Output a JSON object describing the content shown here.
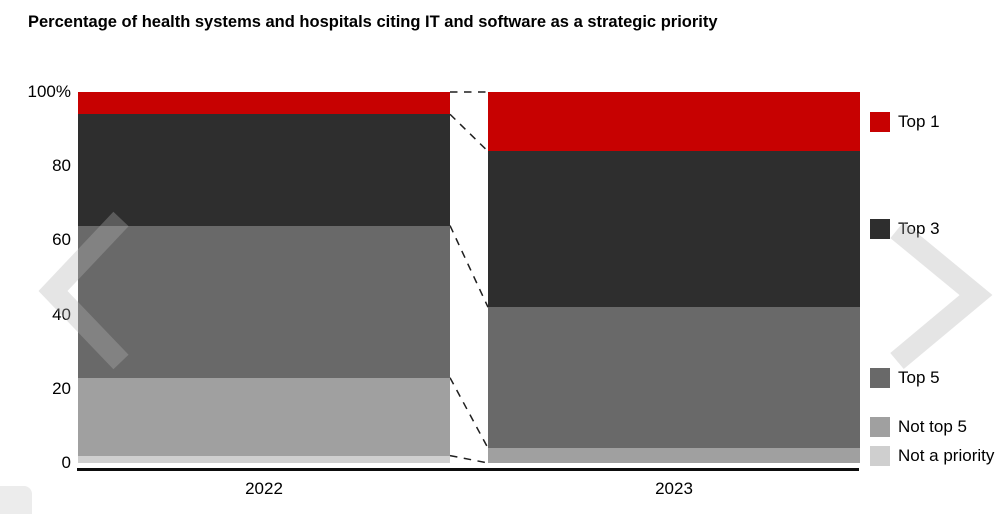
{
  "title": "Percentage of health systems and hospitals citing IT and software as a strategic priority",
  "chart_data": {
    "type": "bar",
    "stacked": true,
    "orientation": "vertical",
    "title": "Percentage of health systems and hospitals citing IT and software as a strategic priority",
    "categories": [
      "2022",
      "2023"
    ],
    "series": [
      {
        "name": "Top 1",
        "color": "#c70101",
        "values": [
          6,
          16
        ]
      },
      {
        "name": "Top 3",
        "color": "#2e2e2e",
        "values": [
          30,
          42
        ]
      },
      {
        "name": "Top 5",
        "color": "#696969",
        "values": [
          41,
          38
        ]
      },
      {
        "name": "Not top 5",
        "color": "#a0a0a0",
        "values": [
          21,
          4
        ]
      },
      {
        "name": "Not a priority",
        "color": "#cfcfcf",
        "values": [
          2,
          0
        ]
      }
    ],
    "xlabel": "",
    "ylabel": "",
    "ylim": [
      0,
      100
    ],
    "yticks": [
      {
        "value": 100,
        "label": "100%"
      },
      {
        "value": 80,
        "label": "80"
      },
      {
        "value": 60,
        "label": "60"
      },
      {
        "value": 40,
        "label": "40"
      },
      {
        "value": 20,
        "label": "20"
      },
      {
        "value": 0,
        "label": "0"
      }
    ],
    "grid": false,
    "legend_position": "right",
    "segment_connectors": "dashed"
  }
}
